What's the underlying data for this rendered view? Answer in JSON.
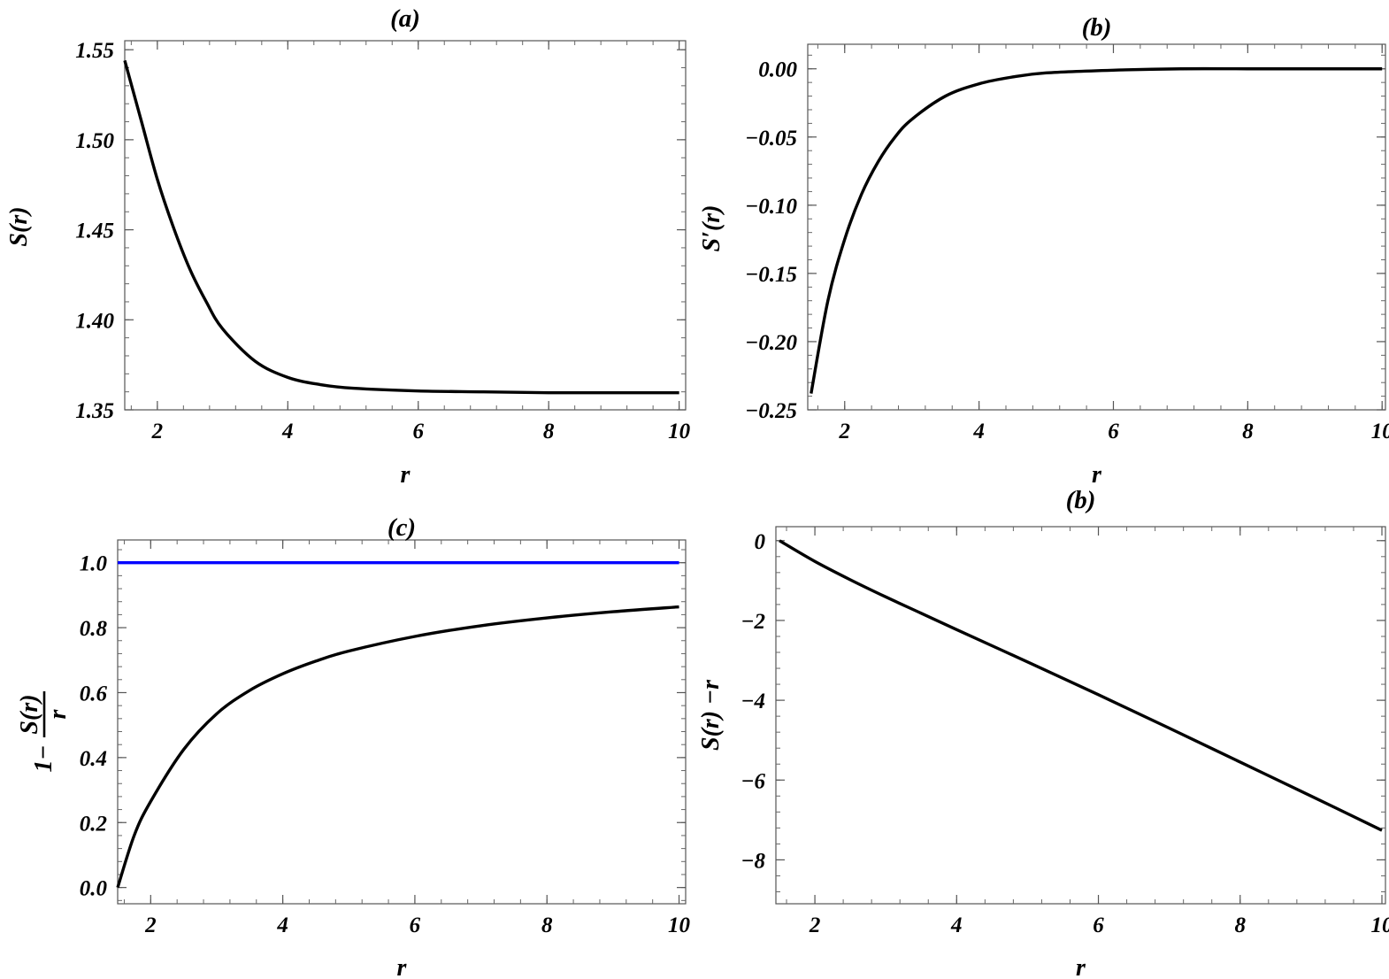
{
  "chart_data": [
    {
      "type": "line",
      "title": "(a)",
      "xlabel": "r",
      "ylabel": "S(r)",
      "xlim": [
        1.5,
        10.1
      ],
      "ylim": [
        1.35,
        1.555
      ],
      "xticks": [
        2,
        4,
        6,
        8,
        10
      ],
      "xtick_labels": [
        "2",
        "4",
        "6",
        "8",
        "10"
      ],
      "yticks": [
        1.35,
        1.4,
        1.45,
        1.5,
        1.55
      ],
      "ytick_labels": [
        "1.35",
        "1.40",
        "1.45",
        "1.50",
        "1.55"
      ],
      "grid": false,
      "series": [
        {
          "color": "#000000",
          "x": [
            1.5,
            1.75,
            2,
            2.25,
            2.5,
            2.75,
            3,
            3.5,
            4,
            4.5,
            5,
            6,
            7,
            8,
            9,
            10
          ],
          "y": [
            1.544,
            1.511,
            1.478,
            1.451,
            1.428,
            1.41,
            1.395,
            1.377,
            1.368,
            1.364,
            1.362,
            1.3605,
            1.36,
            1.3595,
            1.3595,
            1.3595
          ]
        }
      ]
    },
    {
      "type": "line",
      "title": "(b)",
      "xlabel": "r",
      "ylabel": "S′(r)",
      "xlim": [
        1.45,
        10.05
      ],
      "ylim": [
        -0.25,
        0.018
      ],
      "xticks": [
        2,
        4,
        6,
        8,
        10
      ],
      "xtick_labels": [
        "2",
        "4",
        "6",
        "8",
        "10"
      ],
      "yticks": [
        -0.25,
        -0.2,
        -0.15,
        -0.1,
        -0.05,
        0.0
      ],
      "ytick_labels": [
        "−0.25",
        "−0.20",
        "−0.15",
        "−0.10",
        "−0.05",
        "0.00"
      ],
      "grid": false,
      "series": [
        {
          "color": "#000000",
          "x": [
            1.5,
            1.75,
            2,
            2.25,
            2.5,
            2.75,
            3,
            3.5,
            4,
            4.5,
            5,
            6,
            7,
            8,
            9,
            10
          ],
          "y": [
            -0.238,
            -0.17,
            -0.125,
            -0.092,
            -0.068,
            -0.05,
            -0.037,
            -0.02,
            -0.011,
            -0.006,
            -0.003,
            -0.001,
            0.0,
            0.0,
            0.0,
            0.0
          ]
        }
      ]
    },
    {
      "type": "line",
      "title": "(c)",
      "xlabel": "r",
      "ylabel_numerator": "S(r)",
      "ylabel_prefix": "1−",
      "ylabel_denominator": "r",
      "xlim": [
        1.5,
        10.1
      ],
      "ylim": [
        -0.05,
        1.07
      ],
      "xticks": [
        2,
        4,
        6,
        8,
        10
      ],
      "xtick_labels": [
        "2",
        "4",
        "6",
        "8",
        "10"
      ],
      "yticks": [
        0.0,
        0.2,
        0.4,
        0.6,
        0.8,
        1.0
      ],
      "ytick_labels": [
        "0.0",
        "0.2",
        "0.4",
        "0.6",
        "0.8",
        "1.0"
      ],
      "grid": false,
      "series": [
        {
          "color": "#0000ff",
          "x": [
            1.5,
            10
          ],
          "y": [
            1.0,
            1.0
          ]
        },
        {
          "color": "#000000",
          "x": [
            1.5,
            1.75,
            2,
            2.5,
            3,
            3.5,
            4,
            4.5,
            5,
            6,
            7,
            8,
            9,
            10
          ],
          "y": [
            0.0,
            0.16,
            0.265,
            0.425,
            0.535,
            0.607,
            0.658,
            0.697,
            0.728,
            0.773,
            0.806,
            0.83,
            0.849,
            0.864
          ]
        }
      ]
    },
    {
      "type": "line",
      "title": "(b)",
      "xlabel": "r",
      "ylabel": "S(r) −r",
      "xlim": [
        1.45,
        10.05
      ],
      "ylim": [
        -9.1,
        0.35
      ],
      "xticks": [
        2,
        4,
        6,
        8,
        10
      ],
      "xtick_labels": [
        "2",
        "4",
        "6",
        "8",
        "10"
      ],
      "yticks": [
        -8,
        -6,
        -4,
        -2,
        0
      ],
      "ytick_labels": [
        "−8",
        "−6",
        "−4",
        "−2",
        "0"
      ],
      "grid": false,
      "series": [
        {
          "color": "#000000",
          "x": [
            1.5,
            2,
            2.5,
            3,
            3.5,
            4,
            5,
            6,
            7,
            8,
            9,
            10
          ],
          "y": [
            0.0,
            -0.52,
            -0.98,
            -1.41,
            -1.82,
            -2.23,
            -3.04,
            -3.86,
            -4.7,
            -5.55,
            -6.4,
            -7.26
          ]
        }
      ]
    }
  ]
}
